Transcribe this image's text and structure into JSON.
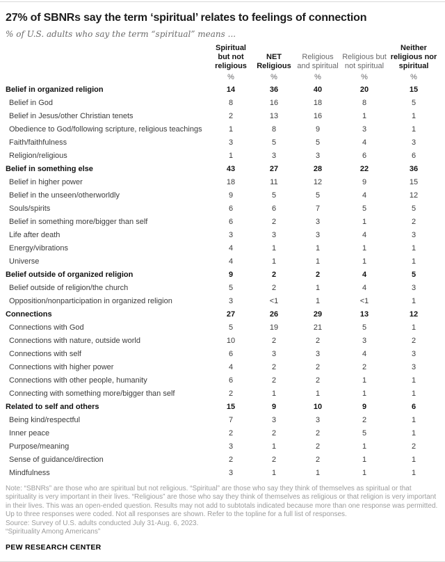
{
  "title": "27% of SBNRs say the term ‘spiritual’ relates to feelings of connection",
  "subtitle": "% of U.S. adults who say the term “spiritual” means ...",
  "chart_data": {
    "type": "table",
    "title": "27% of SBNRs say the term ‘spiritual’ relates to feelings of connection",
    "subtitle": "% of U.S. adults who say the term “spiritual” means ...",
    "unit": "%",
    "columns": [
      "Spiritual but not religious",
      "NET Religious",
      "Religious and spiritual",
      "Religious but not spiritual",
      "Neither religious nor spiritual"
    ],
    "column_styles": [
      "bold",
      "bold",
      "gray",
      "gray",
      "bold"
    ],
    "units": [
      "%",
      "%",
      "%",
      "%",
      "%"
    ],
    "rows": [
      {
        "label": "Belief in organized religion",
        "section": true,
        "values": [
          "14",
          "36",
          "40",
          "20",
          "15"
        ]
      },
      {
        "label": "Belief in God",
        "section": false,
        "values": [
          "8",
          "16",
          "18",
          "8",
          "5"
        ]
      },
      {
        "label": "Belief in Jesus/other Christian tenets",
        "section": false,
        "values": [
          "2",
          "13",
          "16",
          "1",
          "1"
        ]
      },
      {
        "label": "Obedience to God/following scripture, religious teachings",
        "section": false,
        "values": [
          "1",
          "8",
          "9",
          "3",
          "1"
        ]
      },
      {
        "label": "Faith/faithfulness",
        "section": false,
        "values": [
          "3",
          "5",
          "5",
          "4",
          "3"
        ]
      },
      {
        "label": "Religion/religious",
        "section": false,
        "values": [
          "1",
          "3",
          "3",
          "6",
          "6"
        ]
      },
      {
        "label": "Belief in something else",
        "section": true,
        "values": [
          "43",
          "27",
          "28",
          "22",
          "36"
        ]
      },
      {
        "label": "Belief in higher power",
        "section": false,
        "values": [
          "18",
          "11",
          "12",
          "9",
          "15"
        ]
      },
      {
        "label": "Belief in the unseen/otherworldly",
        "section": false,
        "values": [
          "9",
          "5",
          "5",
          "4",
          "12"
        ]
      },
      {
        "label": "Souls/spirits",
        "section": false,
        "values": [
          "6",
          "6",
          "7",
          "5",
          "5"
        ]
      },
      {
        "label": "Belief in something more/bigger than self",
        "section": false,
        "values": [
          "6",
          "2",
          "3",
          "1",
          "2"
        ]
      },
      {
        "label": "Life after death",
        "section": false,
        "values": [
          "3",
          "3",
          "3",
          "4",
          "3"
        ]
      },
      {
        "label": "Energy/vibrations",
        "section": false,
        "values": [
          "4",
          "1",
          "1",
          "1",
          "1"
        ]
      },
      {
        "label": "Universe",
        "section": false,
        "values": [
          "4",
          "1",
          "1",
          "1",
          "1"
        ]
      },
      {
        "label": "Belief outside of organized religion",
        "section": true,
        "values": [
          "9",
          "2",
          "2",
          "4",
          "5"
        ]
      },
      {
        "label": "Belief outside of religion/the church",
        "section": false,
        "values": [
          "5",
          "2",
          "1",
          "4",
          "3"
        ]
      },
      {
        "label": "Opposition/nonparticipation in organized religion",
        "section": false,
        "values": [
          "3",
          "<1",
          "1",
          "<1",
          "1"
        ]
      },
      {
        "label": "Connections",
        "section": true,
        "values": [
          "27",
          "26",
          "29",
          "13",
          "12"
        ]
      },
      {
        "label": "Connections with God",
        "section": false,
        "values": [
          "5",
          "19",
          "21",
          "5",
          "1"
        ]
      },
      {
        "label": "Connections with nature, outside world",
        "section": false,
        "values": [
          "10",
          "2",
          "2",
          "3",
          "2"
        ]
      },
      {
        "label": "Connections with self",
        "section": false,
        "values": [
          "6",
          "3",
          "3",
          "4",
          "3"
        ]
      },
      {
        "label": "Connections with higher power",
        "section": false,
        "values": [
          "4",
          "2",
          "2",
          "2",
          "3"
        ]
      },
      {
        "label": "Connections with other people, humanity",
        "section": false,
        "values": [
          "6",
          "2",
          "2",
          "1",
          "1"
        ]
      },
      {
        "label": "Connecting with something more/bigger than self",
        "section": false,
        "values": [
          "2",
          "1",
          "1",
          "1",
          "1"
        ]
      },
      {
        "label": "Related to self and others",
        "section": true,
        "values": [
          "15",
          "9",
          "10",
          "9",
          "6"
        ]
      },
      {
        "label": "Being kind/respectful",
        "section": false,
        "values": [
          "7",
          "3",
          "3",
          "2",
          "1"
        ]
      },
      {
        "label": "Inner peace",
        "section": false,
        "values": [
          "2",
          "2",
          "2",
          "5",
          "1"
        ]
      },
      {
        "label": "Purpose/meaning",
        "section": false,
        "values": [
          "3",
          "1",
          "2",
          "1",
          "2"
        ]
      },
      {
        "label": "Sense of guidance/direction",
        "section": false,
        "values": [
          "2",
          "2",
          "2",
          "1",
          "1"
        ]
      },
      {
        "label": "Mindfulness",
        "section": false,
        "values": [
          "3",
          "1",
          "1",
          "1",
          "1"
        ]
      }
    ]
  },
  "note": [
    "Note: “SBNRs” are those who are spiritual but not religious. “Spiritual” are those who say they think of themselves as spiritual or that spirituality is very important in their lives. “Religious” are those who say they think of themselves as religious or that religion is very important in their lives. This was an open-ended question. Results may not add to subtotals indicated because more than one response was permitted. Up to three responses were coded. Not all responses are shown. Refer to the topline for a full list of responses.",
    "Source: Survey of U.S. adults conducted July 31-Aug. 6, 2023.",
    "“Spirituality Among Americans”"
  ],
  "footer": "PEW RESEARCH CENTER",
  "colors": {
    "rule": "#d9d9d9",
    "title_text": "#1c1c1c",
    "subtitle_text": "#6b6b6b",
    "bold_text": "#121212",
    "body_text": "#3b3b3b",
    "gray_header": "#68686a",
    "note_text": "#9c9c9c"
  }
}
